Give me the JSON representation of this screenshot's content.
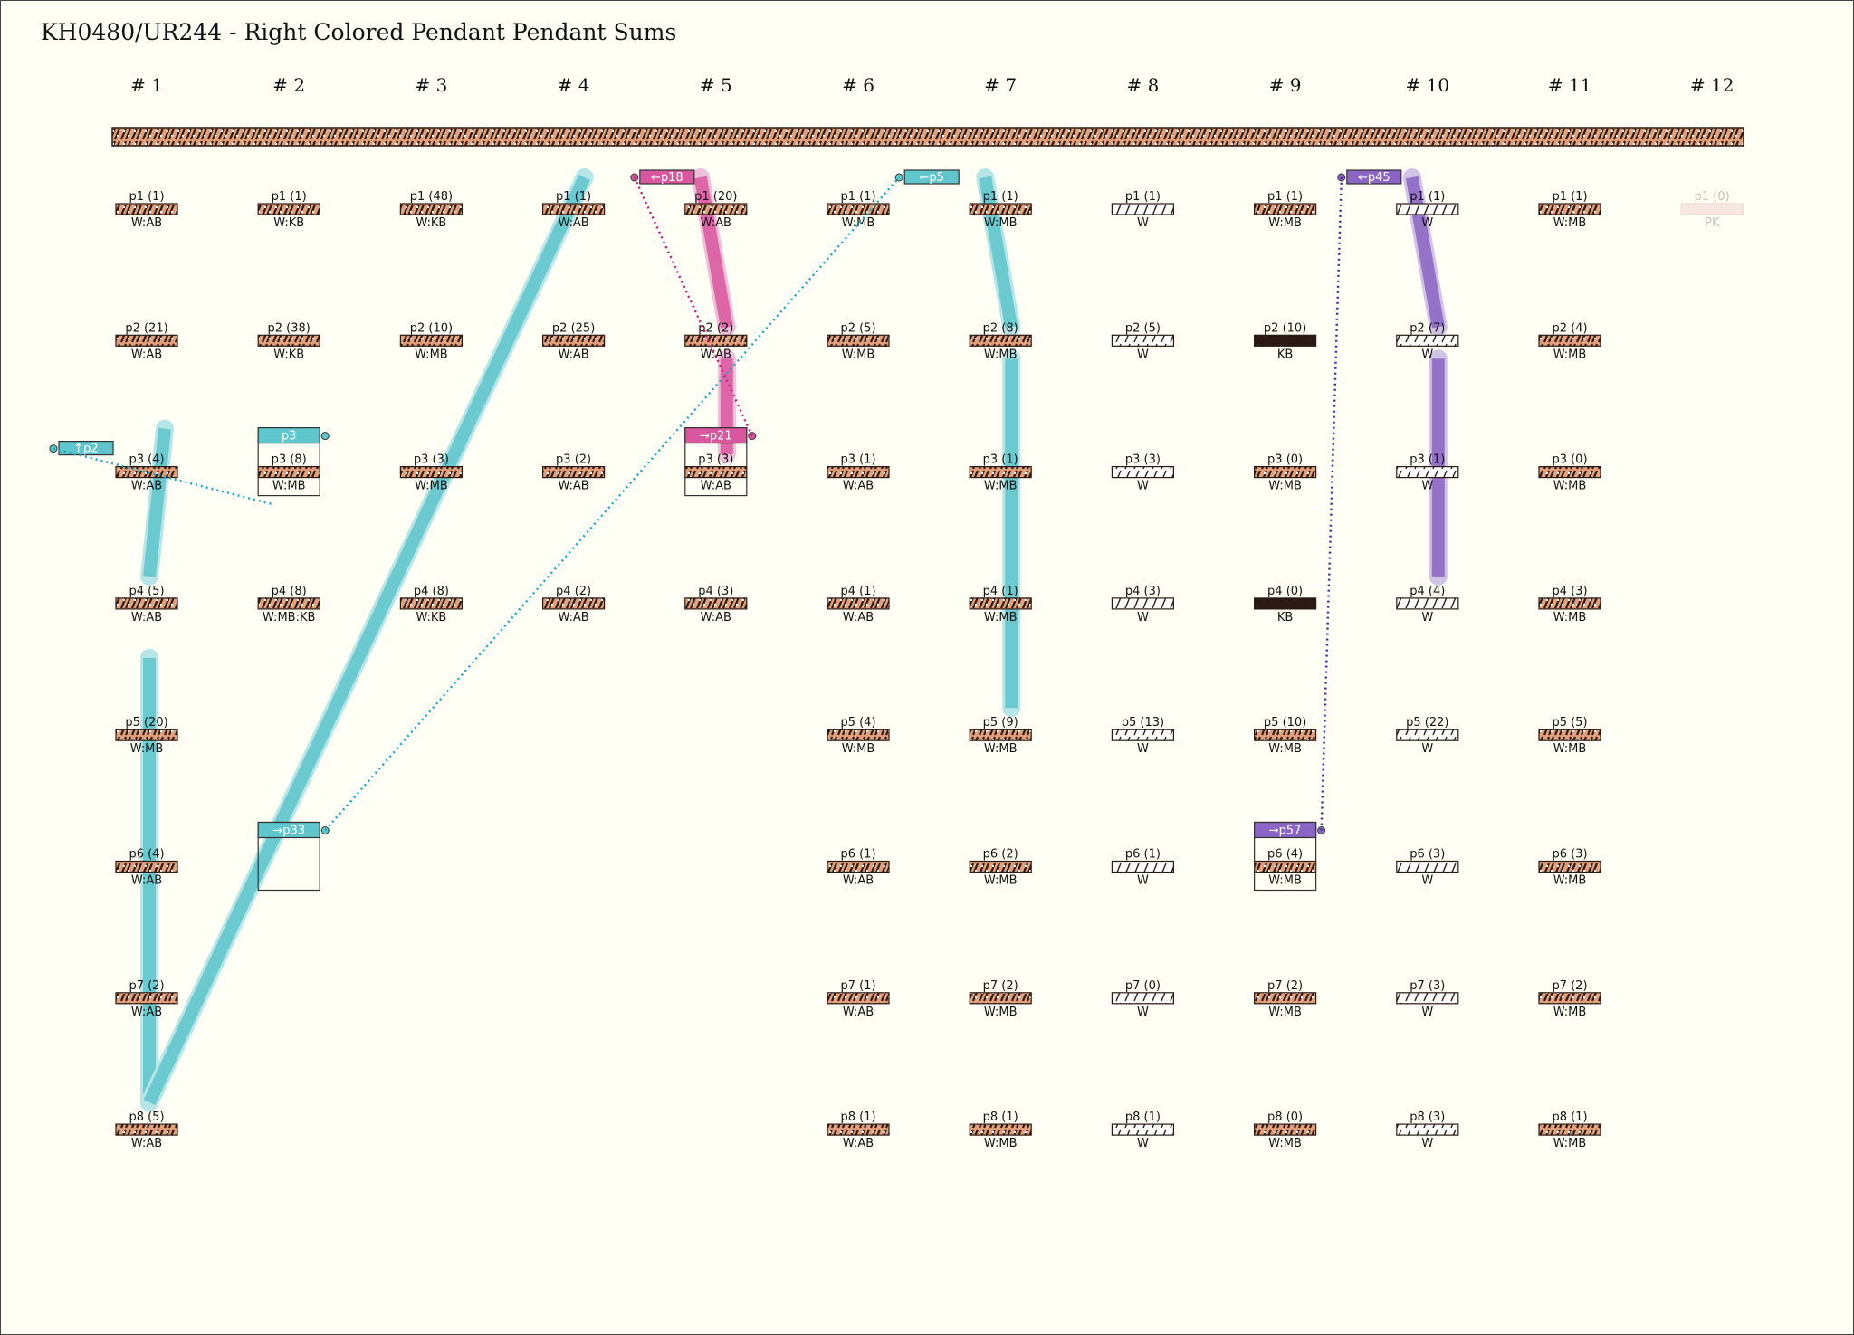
{
  "title": "KH0480/UR244 - Right Colored Pendant Pendant Sums",
  "colors": {
    "background": "#fffff6",
    "cyan": "#5ec6cc",
    "cyan_light": "#b7e6e8",
    "magenta": "#d9579e",
    "magenta_light": "#efbfd9",
    "purple": "#8a65c3",
    "purple_light": "#d0c3e6",
    "cord_dark": "#2b1a14",
    "cord_light": "#e3a07a",
    "faded": "#f6e8e0"
  },
  "columns": [
    {
      "label": "# 1",
      "pendants": [
        {
          "name": "p1 (1)",
          "label": "W:AB",
          "style": "mixed"
        },
        {
          "name": "p2 (21)",
          "label": "W:AB",
          "style": "mixed"
        },
        {
          "name": "p3 (4)",
          "label": "W:AB",
          "style": "mixed"
        },
        {
          "name": "p4 (5)",
          "label": "W:AB",
          "style": "mixed"
        },
        {
          "name": "p5 (20)",
          "label": "W:MB",
          "style": "mixed"
        },
        {
          "name": "p6 (4)",
          "label": "W:AB",
          "style": "mixed"
        },
        {
          "name": "p7 (2)",
          "label": "W:AB",
          "style": "mixed"
        },
        {
          "name": "p8 (5)",
          "label": "W:AB",
          "style": "mixed"
        }
      ]
    },
    {
      "label": "# 2",
      "pendants": [
        {
          "name": "p1 (1)",
          "label": "W:KB",
          "style": "mixed"
        },
        {
          "name": "p2 (38)",
          "label": "W:KB",
          "style": "mixed"
        },
        {
          "name": "p3 (8)",
          "label": "W:MB",
          "style": "mixed"
        },
        {
          "name": "p4 (8)",
          "label": "W:MB:KB",
          "style": "mixed"
        }
      ]
    },
    {
      "label": "# 3",
      "pendants": [
        {
          "name": "p1 (48)",
          "label": "W:KB",
          "style": "mixed"
        },
        {
          "name": "p2 (10)",
          "label": "W:MB",
          "style": "mixed"
        },
        {
          "name": "p3 (3)",
          "label": "W:MB",
          "style": "mixed"
        },
        {
          "name": "p4 (8)",
          "label": "W:KB",
          "style": "mixed"
        }
      ]
    },
    {
      "label": "# 4",
      "pendants": [
        {
          "name": "p1 (1)",
          "label": "W:AB",
          "style": "mixed"
        },
        {
          "name": "p2 (25)",
          "label": "W:AB",
          "style": "mixed"
        },
        {
          "name": "p3 (2)",
          "label": "W:AB",
          "style": "mixed"
        },
        {
          "name": "p4 (2)",
          "label": "W:AB",
          "style": "mixed"
        }
      ]
    },
    {
      "label": "# 5",
      "pendants": [
        {
          "name": "p1 (20)",
          "label": "W:AB",
          "style": "mixed"
        },
        {
          "name": "p2 (2)",
          "label": "W:AB",
          "style": "mixed"
        },
        {
          "name": "p3 (3)",
          "label": "W:AB",
          "style": "mixed"
        },
        {
          "name": "p4 (3)",
          "label": "W:AB",
          "style": "mixed"
        }
      ]
    },
    {
      "label": "# 6",
      "pendants": [
        {
          "name": "p1 (1)",
          "label": "W:MB",
          "style": "mixed"
        },
        {
          "name": "p2 (5)",
          "label": "W:MB",
          "style": "mixed"
        },
        {
          "name": "p3 (1)",
          "label": "W:AB",
          "style": "mixed"
        },
        {
          "name": "p4 (1)",
          "label": "W:AB",
          "style": "mixed"
        },
        {
          "name": "p5 (4)",
          "label": "W:MB",
          "style": "mixed"
        },
        {
          "name": "p6 (1)",
          "label": "W:AB",
          "style": "mixed"
        },
        {
          "name": "p7 (1)",
          "label": "W:AB",
          "style": "mixed"
        },
        {
          "name": "p8 (1)",
          "label": "W:AB",
          "style": "mixed"
        }
      ]
    },
    {
      "label": "# 7",
      "pendants": [
        {
          "name": "p1 (1)",
          "label": "W:MB",
          "style": "mixed"
        },
        {
          "name": "p2 (8)",
          "label": "W:MB",
          "style": "mixed"
        },
        {
          "name": "p3 (1)",
          "label": "W:MB",
          "style": "mixed"
        },
        {
          "name": "p4 (1)",
          "label": "W:MB",
          "style": "mixed"
        },
        {
          "name": "p5 (9)",
          "label": "W:MB",
          "style": "mixed"
        },
        {
          "name": "p6 (2)",
          "label": "W:MB",
          "style": "mixed"
        },
        {
          "name": "p7 (2)",
          "label": "W:MB",
          "style": "mixed"
        },
        {
          "name": "p8 (1)",
          "label": "W:MB",
          "style": "mixed"
        }
      ]
    },
    {
      "label": "# 8",
      "pendants": [
        {
          "name": "p1 (1)",
          "label": "W",
          "style": "white"
        },
        {
          "name": "p2 (5)",
          "label": "W",
          "style": "white"
        },
        {
          "name": "p3 (3)",
          "label": "W",
          "style": "white"
        },
        {
          "name": "p4 (3)",
          "label": "W",
          "style": "white"
        },
        {
          "name": "p5 (13)",
          "label": "W",
          "style": "white"
        },
        {
          "name": "p6 (1)",
          "label": "W",
          "style": "white"
        },
        {
          "name": "p7 (0)",
          "label": "W",
          "style": "white"
        },
        {
          "name": "p8 (1)",
          "label": "W",
          "style": "white"
        }
      ]
    },
    {
      "label": "# 9",
      "pendants": [
        {
          "name": "p1 (1)",
          "label": "W:MB",
          "style": "mixed"
        },
        {
          "name": "p2 (10)",
          "label": "KB",
          "style": "dark"
        },
        {
          "name": "p3 (0)",
          "label": "W:MB",
          "style": "mixed"
        },
        {
          "name": "p4 (0)",
          "label": "KB",
          "style": "dark"
        },
        {
          "name": "p5 (10)",
          "label": "W:MB",
          "style": "mixed"
        },
        {
          "name": "p6 (4)",
          "label": "W:MB",
          "style": "mixed"
        },
        {
          "name": "p7 (2)",
          "label": "W:MB",
          "style": "mixed"
        },
        {
          "name": "p8 (0)",
          "label": "W:MB",
          "style": "mixed"
        }
      ]
    },
    {
      "label": "# 10",
      "pendants": [
        {
          "name": "p1 (1)",
          "label": "W",
          "style": "white"
        },
        {
          "name": "p2 (7)",
          "label": "W",
          "style": "white"
        },
        {
          "name": "p3 (1)",
          "label": "W",
          "style": "white"
        },
        {
          "name": "p4 (4)",
          "label": "W",
          "style": "white"
        },
        {
          "name": "p5 (22)",
          "label": "W",
          "style": "white"
        },
        {
          "name": "p6 (3)",
          "label": "W",
          "style": "white"
        },
        {
          "name": "p7 (3)",
          "label": "W",
          "style": "white"
        },
        {
          "name": "p8 (3)",
          "label": "W",
          "style": "white"
        }
      ]
    },
    {
      "label": "# 11",
      "pendants": [
        {
          "name": "p1 (1)",
          "label": "W:MB",
          "style": "mixed"
        },
        {
          "name": "p2 (4)",
          "label": "W:MB",
          "style": "mixed"
        },
        {
          "name": "p3 (0)",
          "label": "W:MB",
          "style": "mixed"
        },
        {
          "name": "p4 (3)",
          "label": "W:MB",
          "style": "mixed"
        },
        {
          "name": "p5 (5)",
          "label": "W:MB",
          "style": "mixed"
        },
        {
          "name": "p6 (3)",
          "label": "W:MB",
          "style": "mixed"
        },
        {
          "name": "p7 (2)",
          "label": "W:MB",
          "style": "mixed"
        },
        {
          "name": "p8 (1)",
          "label": "W:MB",
          "style": "mixed"
        }
      ]
    },
    {
      "label": "# 12",
      "pendants": [
        {
          "name": "p1 (0)",
          "label": "PK",
          "style": "faded"
        }
      ]
    }
  ],
  "sum_groups": [
    {
      "color": "cyan",
      "target_col": 1,
      "target_row": 2,
      "sum_tag": "p3",
      "ref_tag": "↑p2"
    },
    {
      "color": "cyan",
      "target_col": 1,
      "target_row": 5,
      "sum_tag": "→p33",
      "ref_tag": "←p5"
    },
    {
      "color": "magenta",
      "target_col": 4,
      "target_row": 2,
      "sum_tag": "→p21",
      "ref_tag": "←p18"
    },
    {
      "color": "purple",
      "target_col": 8,
      "target_row": 5,
      "sum_tag": "→p57",
      "ref_tag": "←p45"
    }
  ]
}
